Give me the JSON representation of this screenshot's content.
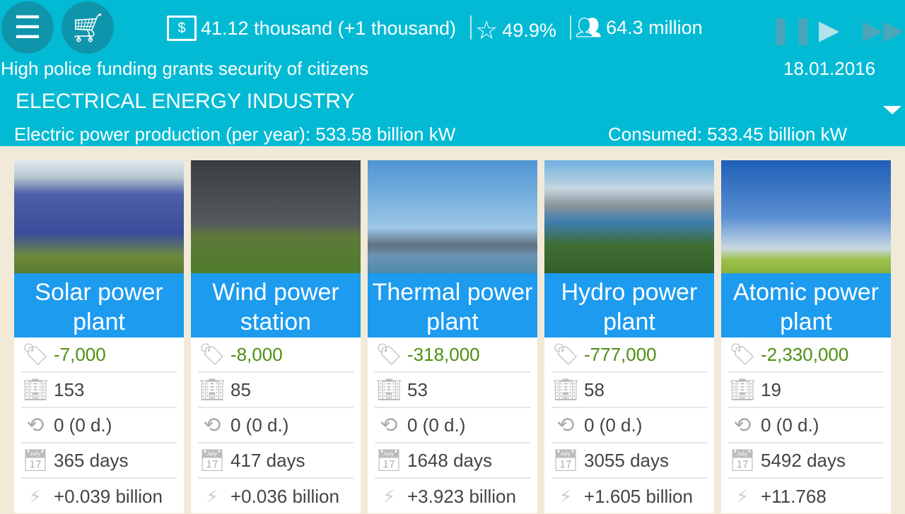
{
  "header": {
    "money": "41.12 thousand (+1 thousand)",
    "rating": "49.9%",
    "population": "64.3 million",
    "news": "High police funding grants security of citizens",
    "date": "18.01.2016",
    "industry": "ELECTRICAL ENERGY INDUSTRY",
    "production": "Electric power production (per year): 533.58 billion kW",
    "consumed": "Consumed: 533.45 billion kW"
  },
  "colors": {
    "header": "#03bad4",
    "card_title": "#1d9bef",
    "cost": "#4d8f12"
  },
  "plants": [
    {
      "title": "Solar power plant",
      "cost": "-7,000",
      "count": "153",
      "income": "0 (0 d.)",
      "days": "365 days",
      "output": "+0.039 billion"
    },
    {
      "title": "Wind power station",
      "cost": "-8,000",
      "count": "85",
      "income": "0 (0 d.)",
      "days": "417 days",
      "output": "+0.036 billion"
    },
    {
      "title": "Thermal power plant",
      "cost": "-318,000",
      "count": "53",
      "income": "0 (0 d.)",
      "days": "1648 days",
      "output": "+3.923 billion"
    },
    {
      "title": "Hydro power plant",
      "cost": "-777,000",
      "count": "58",
      "income": "0 (0 d.)",
      "days": "3055 days",
      "output": "+1.605 billion"
    },
    {
      "title": "Atomic power plant",
      "cost": "-2,330,000",
      "count": "19",
      "income": "0 (0 d.)",
      "days": "5492 days",
      "output": "+11.768"
    }
  ]
}
